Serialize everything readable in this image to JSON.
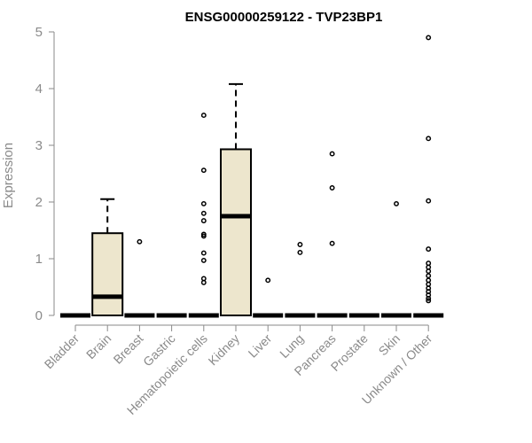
{
  "chart_data": {
    "type": "box",
    "title": "ENSG00000259122 - TVP23BP1",
    "ylabel": "Expression",
    "xlabel": "",
    "ylim": [
      0,
      5
    ],
    "yticks": [
      0,
      1,
      2,
      3,
      4,
      5
    ],
    "grid": false,
    "colors": {
      "box_fill": "#ede6cd",
      "box_stroke": "#000000",
      "axis": "#8a8a8a"
    },
    "categories": [
      "Bladder",
      "Brain",
      "Breast",
      "Gastric",
      "Hematopoietic cells",
      "Kidney",
      "Liver",
      "Lung",
      "Pancreas",
      "Prostate",
      "Skin",
      "Unknown / Other"
    ],
    "boxes": [
      {
        "category": "Bladder",
        "q1": 0,
        "median": 0,
        "q3": 0,
        "whisker_low": 0,
        "whisker_high": 0,
        "outliers": []
      },
      {
        "category": "Brain",
        "q1": 0,
        "median": 0.33,
        "q3": 1.45,
        "whisker_low": 0,
        "whisker_high": 2.05,
        "outliers": []
      },
      {
        "category": "Breast",
        "q1": 0,
        "median": 0,
        "q3": 0,
        "whisker_low": 0,
        "whisker_high": 0,
        "outliers": [
          1.3
        ]
      },
      {
        "category": "Gastric",
        "q1": 0,
        "median": 0,
        "q3": 0,
        "whisker_low": 0,
        "whisker_high": 0,
        "outliers": []
      },
      {
        "category": "Hematopoietic cells",
        "q1": 0,
        "median": 0,
        "q3": 0,
        "whisker_low": 0,
        "whisker_high": 0,
        "outliers": [
          3.53,
          2.56,
          1.97,
          1.8,
          1.67,
          1.43,
          1.4,
          1.1,
          0.97,
          0.65,
          0.58
        ]
      },
      {
        "category": "Kidney",
        "q1": 0,
        "median": 1.75,
        "q3": 2.93,
        "whisker_low": 0,
        "whisker_high": 4.08,
        "outliers": []
      },
      {
        "category": "Liver",
        "q1": 0,
        "median": 0,
        "q3": 0,
        "whisker_low": 0,
        "whisker_high": 0,
        "outliers": [
          0.62
        ]
      },
      {
        "category": "Lung",
        "q1": 0,
        "median": 0,
        "q3": 0,
        "whisker_low": 0,
        "whisker_high": 0,
        "outliers": [
          1.25,
          1.11
        ]
      },
      {
        "category": "Pancreas",
        "q1": 0,
        "median": 0,
        "q3": 0,
        "whisker_low": 0,
        "whisker_high": 0,
        "outliers": [
          2.85,
          2.25,
          1.27
        ]
      },
      {
        "category": "Prostate",
        "q1": 0,
        "median": 0,
        "q3": 0,
        "whisker_low": 0,
        "whisker_high": 0,
        "outliers": []
      },
      {
        "category": "Skin",
        "q1": 0,
        "median": 0,
        "q3": 0,
        "whisker_low": 0,
        "whisker_high": 0,
        "outliers": [
          1.97
        ]
      },
      {
        "category": "Unknown / Other",
        "q1": 0,
        "median": 0,
        "q3": 0,
        "whisker_low": 0,
        "whisker_high": 0,
        "outliers": [
          4.9,
          3.12,
          2.02,
          1.17,
          0.92,
          0.85,
          0.78,
          0.7,
          0.62,
          0.55,
          0.48,
          0.42,
          0.36,
          0.3,
          0.26
        ]
      }
    ]
  }
}
